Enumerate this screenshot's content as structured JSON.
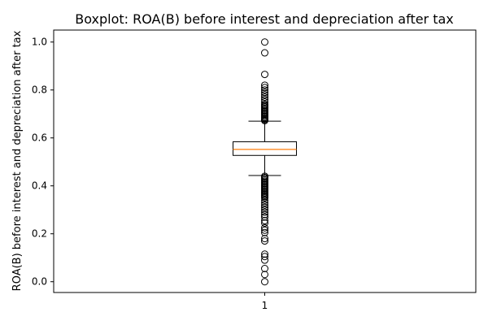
{
  "chart_data": {
    "type": "boxplot",
    "title": "Boxplot:  ROA(B) before interest and depreciation after tax",
    "xlabel": "",
    "ylabel": "ROA(B) before interest and depreciation after tax",
    "categories": [
      "1"
    ],
    "ylim": [
      -0.045,
      1.05
    ],
    "yticks": [
      0.0,
      0.2,
      0.4,
      0.6,
      0.8,
      1.0
    ],
    "ytick_labels": [
      "0.0",
      "0.2",
      "0.4",
      "0.6",
      "0.8",
      "1.0"
    ],
    "grid": false,
    "legend": "none",
    "colors": {
      "box": "#000000",
      "median": "#ff7f0e",
      "flier": "#000000"
    },
    "series": [
      {
        "whisker_low": 0.443,
        "q1": 0.527,
        "median": 0.552,
        "q3": 0.584,
        "whisker_high": 0.67,
        "fliers": [
          0.0,
          0.03,
          0.055,
          0.09,
          0.105,
          0.115,
          0.17,
          0.18,
          0.205,
          0.215,
          0.225,
          0.245,
          0.255,
          0.27,
          0.28,
          0.29,
          0.3,
          0.31,
          0.32,
          0.33,
          0.34,
          0.35,
          0.355,
          0.36,
          0.365,
          0.37,
          0.375,
          0.38,
          0.385,
          0.39,
          0.395,
          0.4,
          0.405,
          0.41,
          0.415,
          0.42,
          0.425,
          0.43,
          0.435,
          0.44,
          0.672,
          0.676,
          0.68,
          0.685,
          0.69,
          0.695,
          0.7,
          0.705,
          0.71,
          0.715,
          0.72,
          0.725,
          0.73,
          0.735,
          0.74,
          0.75,
          0.76,
          0.77,
          0.78,
          0.79,
          0.8,
          0.81,
          0.82,
          0.865,
          0.955,
          1.0
        ]
      }
    ]
  }
}
